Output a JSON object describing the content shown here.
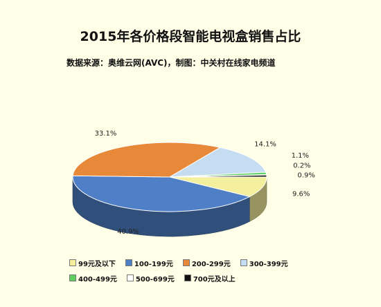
{
  "chart_data": {
    "type": "pie",
    "title": "2015年各价格段智能电视盒销售占比",
    "subtitle": "数据来源：奥维云网(AVC)，制图：中关村在线家电频道",
    "unit": "%",
    "slices": [
      {
        "name": "99元及以下",
        "value": 9.6,
        "label": "9.6%",
        "color": "#f3ef9c"
      },
      {
        "name": "100-199元",
        "value": 40.9,
        "label": "40.9%",
        "color": "#4f7fc6"
      },
      {
        "name": "200-299元",
        "value": 33.1,
        "label": "33.1%",
        "color": "#e8893a"
      },
      {
        "name": "300-399元",
        "value": 14.1,
        "label": "14.1%",
        "color": "#c6dcf0"
      },
      {
        "name": "400-499元",
        "value": 1.1,
        "label": "1.1%",
        "color": "#5ecf5e"
      },
      {
        "name": "500-699元",
        "value": 0.2,
        "label": "0.2%",
        "color": "#ffffff"
      },
      {
        "name": "700元及以上",
        "value": 0.9,
        "label": "0.9%",
        "color": "#111111"
      }
    ],
    "legend_position": "bottom"
  }
}
